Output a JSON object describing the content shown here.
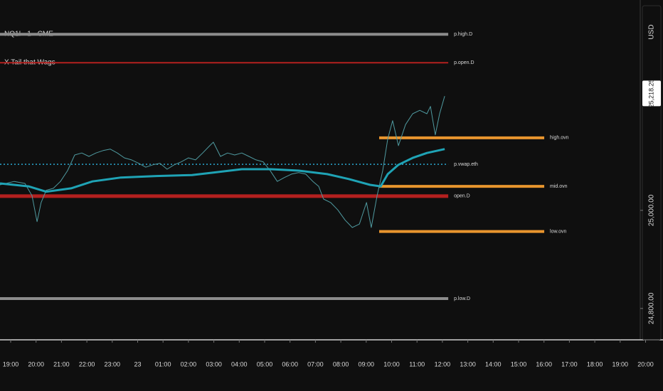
{
  "chart_data": {
    "type": "line",
    "symbol": "NQ1! · 1 · CME",
    "indicator": "X Tail that Wags",
    "currency": "USD",
    "last_price": {
      "value": 25218.25,
      "label": "25,218.25"
    },
    "xlim": [
      0.58,
      25.79
    ],
    "ylim": [
      24736,
      25429
    ],
    "xticks": [
      {
        "value": 1,
        "label": "19:00"
      },
      {
        "value": 2,
        "label": "20:00"
      },
      {
        "value": 3,
        "label": "21:00"
      },
      {
        "value": 4,
        "label": "22:00"
      },
      {
        "value": 5,
        "label": "23:00"
      },
      {
        "value": 6,
        "label": "23"
      },
      {
        "value": 7,
        "label": "01:00"
      },
      {
        "value": 8,
        "label": "02:00"
      },
      {
        "value": 9,
        "label": "03:00"
      },
      {
        "value": 10,
        "label": "04:00"
      },
      {
        "value": 11,
        "label": "05:00"
      },
      {
        "value": 12,
        "label": "06:00"
      },
      {
        "value": 13,
        "label": "07:00"
      },
      {
        "value": 14,
        "label": "08:00"
      },
      {
        "value": 15,
        "label": "09:00"
      },
      {
        "value": 16,
        "label": "10:00"
      },
      {
        "value": 17,
        "label": "11:00"
      },
      {
        "value": 18,
        "label": "12:00"
      },
      {
        "value": 19,
        "label": "13:00"
      },
      {
        "value": 20,
        "label": "14:00"
      },
      {
        "value": 21,
        "label": "15:00"
      },
      {
        "value": 22,
        "label": "16:00"
      },
      {
        "value": 23,
        "label": "17:00"
      },
      {
        "value": 24,
        "label": "18:00"
      },
      {
        "value": 25,
        "label": "19:00"
      },
      {
        "value": 26,
        "label": "20:00"
      }
    ],
    "yticks": [
      {
        "value": 25000,
        "label": "25,000.00"
      },
      {
        "value": 24800,
        "label": "24,800.00"
      }
    ],
    "series": [
      {
        "color": "#4f9aa0",
        "width": 1,
        "x": [
          0.58,
          1.14,
          1.56,
          1.84,
          2.04,
          2.2,
          2.4,
          2.68,
          2.96,
          3.24,
          3.52,
          3.8,
          4.08,
          4.36,
          4.64,
          4.92,
          5.2,
          5.48,
          5.76,
          6.04,
          6.32,
          6.6,
          6.88,
          7.16,
          7.44,
          7.72,
          8.0,
          8.28,
          8.56,
          8.84,
          8.98,
          9.26,
          9.54,
          9.82,
          10.1,
          10.38,
          10.66,
          10.94,
          11.22,
          11.5,
          11.78,
          12.06,
          12.34,
          12.62,
          12.9,
          13.13,
          13.32,
          13.6,
          13.88,
          14.17,
          14.45,
          14.73,
          15.01,
          15.2,
          15.43,
          15.65,
          15.85,
          16.04,
          16.27,
          16.55,
          16.83,
          17.11,
          17.39,
          17.53,
          17.72,
          17.89,
          18.09
        ],
        "values": [
          25052,
          25059,
          25055,
          25030,
          24977,
          25016,
          25041,
          25045,
          25059,
          25081,
          25113,
          25117,
          25110,
          25117,
          25122,
          25125,
          25117,
          25107,
          25103,
          25096,
          25088,
          25093,
          25096,
          25084,
          25093,
          25099,
          25107,
          25103,
          25117,
          25132,
          25139,
          25110,
          25117,
          25113,
          25117,
          25110,
          25103,
          25099,
          25081,
          25059,
          25067,
          25074,
          25077,
          25074,
          25059,
          25049,
          25023,
          25016,
          25001,
          24980,
          24965,
          24972,
          25016,
          24965,
          25030,
          25081,
          25146,
          25183,
          25132,
          25175,
          25197,
          25204,
          25197,
          25212,
          25154,
          25197,
          25233
        ]
      },
      {
        "color": "#1fa3b5",
        "width": 3,
        "x": [
          0.58,
          1.7,
          2.4,
          3.38,
          4.22,
          5.34,
          6.74,
          8.14,
          8.98,
          10.1,
          11.22,
          12.34,
          13.46,
          14.31,
          15.15,
          15.57,
          15.85,
          16.27,
          16.83,
          17.39,
          18.09
        ],
        "values": [
          25055,
          25049,
          25038,
          25045,
          25059,
          25067,
          25070,
          25072,
          25077,
          25084,
          25084,
          25081,
          25074,
          25064,
          25052,
          25049,
          25074,
          25093,
          25107,
          25117,
          25125
        ]
      }
    ],
    "levels": [
      {
        "name": "p.high.D",
        "value": 25359,
        "x": [
          0.58,
          18.23
        ],
        "color": "#8c8c8c",
        "width": 4,
        "dash": false
      },
      {
        "name": "p.open.D",
        "value": 25301,
        "x": [
          0.58,
          18.23
        ],
        "color": "#b3201f",
        "width": 2,
        "dash": false
      },
      {
        "name": "high.ovn",
        "value": 25148,
        "x": [
          15.51,
          22.01
        ],
        "color": "#e8952e",
        "width": 4,
        "dash": false
      },
      {
        "name": "p.vwap.eth",
        "value": 25094,
        "x": [
          0.58,
          18.23
        ],
        "color": "#2aa6cf",
        "width": 1.5,
        "dash": true
      },
      {
        "name": "mid.ovn",
        "value": 25049,
        "x": [
          15.51,
          22.01
        ],
        "color": "#e8952e",
        "width": 4,
        "dash": false
      },
      {
        "name": "open.D",
        "value": 25029,
        "x": [
          0.58,
          18.23
        ],
        "color": "#b3201f",
        "width": 5,
        "dash": false
      },
      {
        "name": "low.ovn",
        "value": 24957,
        "x": [
          15.51,
          22.01
        ],
        "color": "#e8952e",
        "width": 4,
        "dash": false
      },
      {
        "name": "p.low.D",
        "value": 24820,
        "x": [
          0.58,
          18.23
        ],
        "color": "#8c8c8c",
        "width": 4,
        "dash": false
      }
    ]
  }
}
